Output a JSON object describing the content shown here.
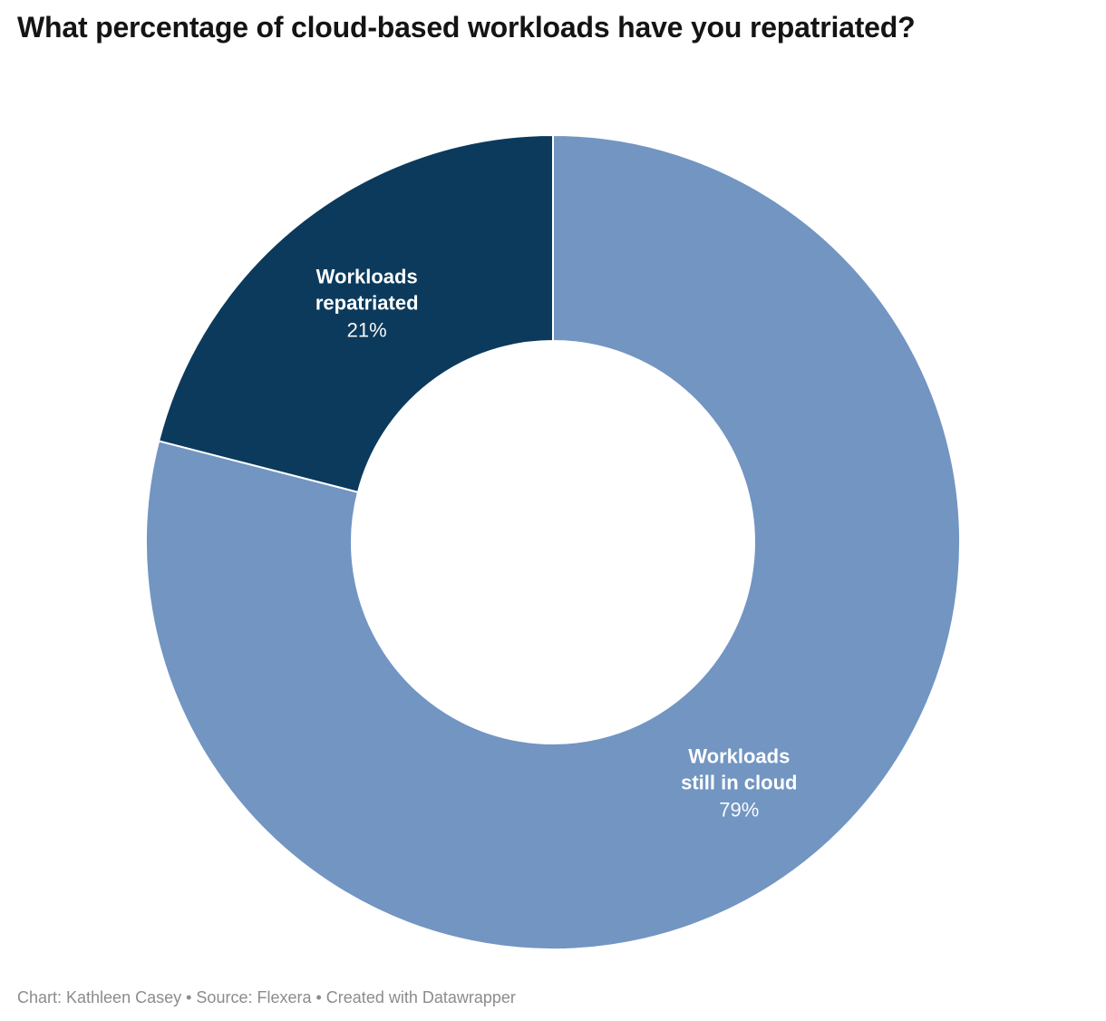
{
  "header": {
    "title": "What percentage of cloud-based workloads have you repatriated?"
  },
  "chart_data": {
    "type": "pie",
    "subtype": "donut",
    "title": "What percentage of cloud-based workloads have you repatriated?",
    "categories": [
      "Workloads still in cloud",
      "Workloads repatriated"
    ],
    "values": [
      79,
      21
    ],
    "unit": "%",
    "slices": [
      {
        "label": "Workloads still in cloud",
        "label_lines": [
          "Workloads",
          "still in cloud"
        ],
        "value": 79,
        "value_display": "79%",
        "color": "#7295c2"
      },
      {
        "label": "Workloads repatriated",
        "label_lines": [
          "Workloads",
          "repatriated"
        ],
        "value": 21,
        "value_display": "21%",
        "color": "#0b3a5c"
      }
    ],
    "start_angle_deg": 0,
    "direction": "clockwise",
    "donut_hole_ratio": 0.495,
    "label_color": "#ffffff",
    "divider_color": "#ffffff",
    "legend": "none",
    "labels_inside_slices": true
  },
  "footer": {
    "chart_credit": "Chart: Kathleen Casey",
    "source": "Source: Flexera",
    "tool": "Created with Datawrapper",
    "separator": "•"
  }
}
